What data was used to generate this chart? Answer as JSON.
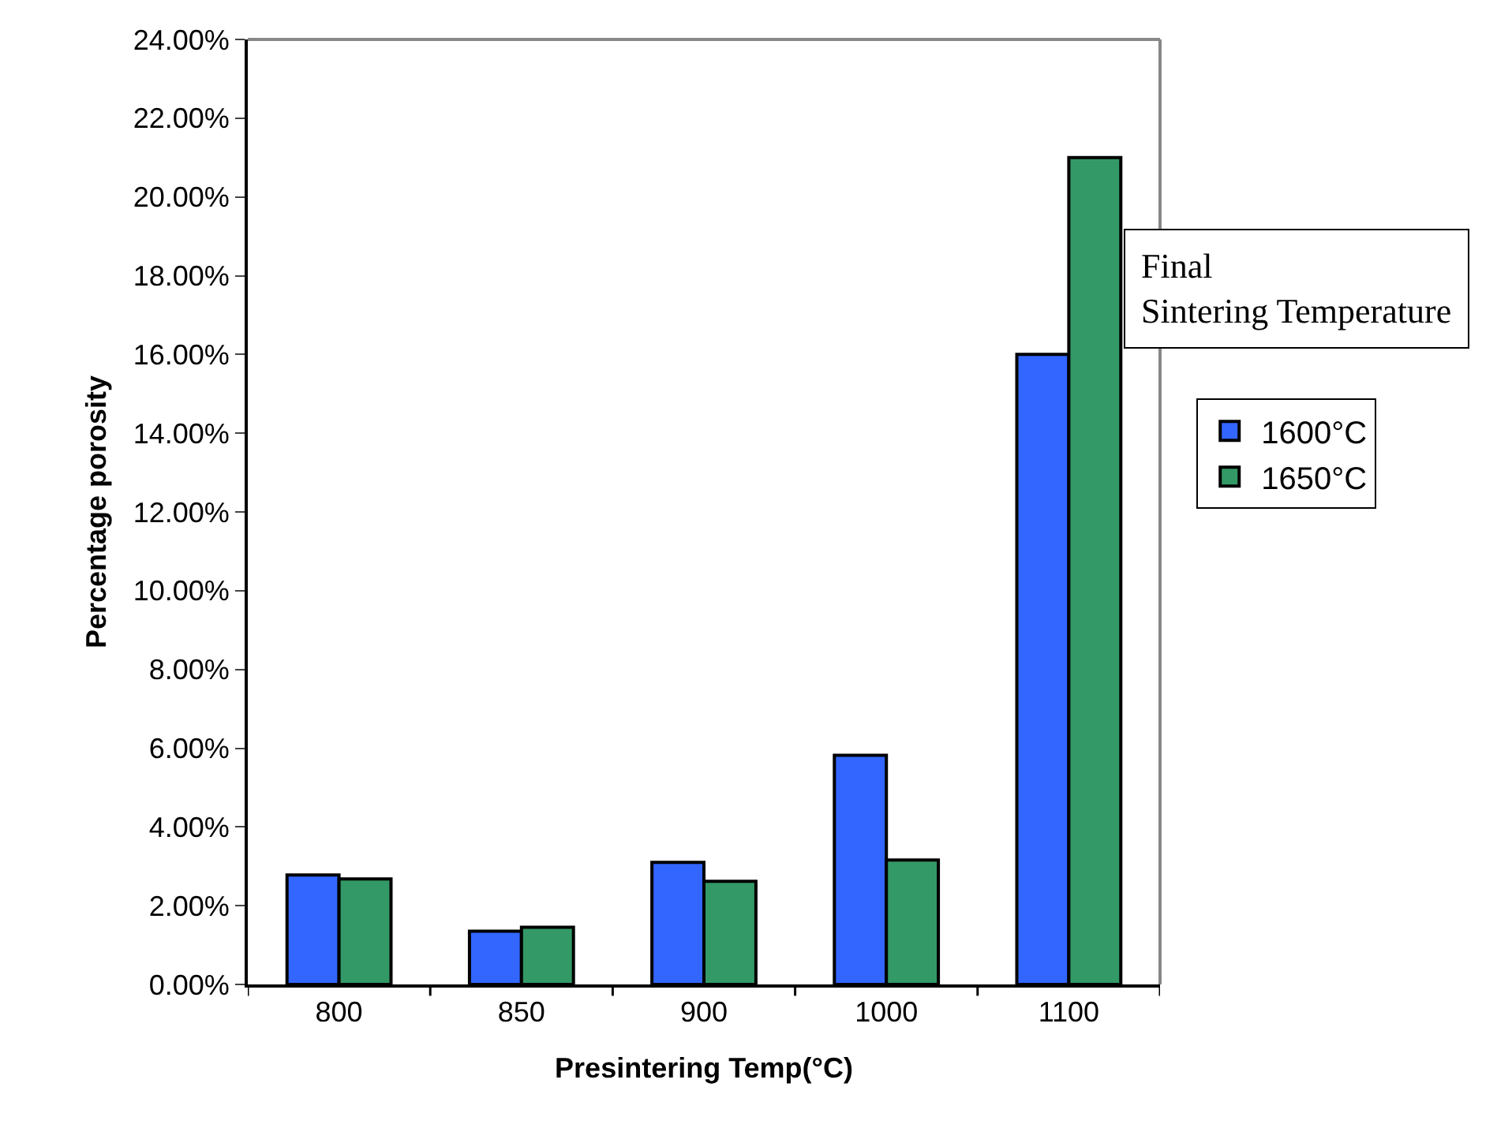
{
  "chart_data": {
    "type": "bar",
    "xlabel": "Presintering Temp(°C)",
    "ylabel": "Percentage porosity",
    "legend_title": "Final Sintering Temperature",
    "legend": "right",
    "categories": [
      "800",
      "850",
      "900",
      "1000",
      "1100"
    ],
    "series": [
      {
        "name": "1600°C",
        "color": "#3366ff",
        "values": [
          2.78,
          1.35,
          3.1,
          5.82,
          16.0
        ]
      },
      {
        "name": "1650°C",
        "color": "#339966",
        "values": [
          2.68,
          1.45,
          2.62,
          3.16,
          21.0
        ]
      }
    ],
    "ylim": [
      0,
      24
    ],
    "yticks": [
      {
        "value": 0,
        "label": "0.00%"
      },
      {
        "value": 2,
        "label": "2.00%"
      },
      {
        "value": 4,
        "label": "4.00%"
      },
      {
        "value": 6,
        "label": "6.00%"
      },
      {
        "value": 8,
        "label": "8.00%"
      },
      {
        "value": 10,
        "label": "10.00%"
      },
      {
        "value": 12,
        "label": "12.00%"
      },
      {
        "value": 14,
        "label": "14.00%"
      },
      {
        "value": 16,
        "label": "16.00%"
      },
      {
        "value": 18,
        "label": "18.00%"
      },
      {
        "value": 20,
        "label": "20.00%"
      },
      {
        "value": 22,
        "label": "22.00%"
      },
      {
        "value": 24,
        "label": "24.00%"
      }
    ],
    "grid": false
  }
}
